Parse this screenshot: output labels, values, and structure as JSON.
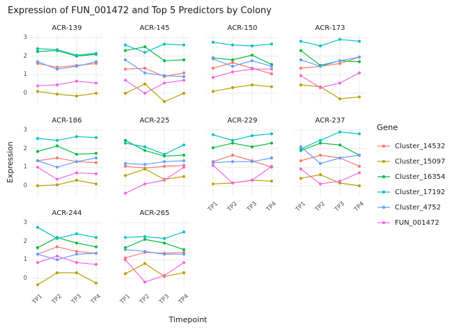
{
  "chart_data": {
    "type": "line",
    "title": "Expression of FUN_001472 and Top 5 Predictors by Colony",
    "xlabel": "Timepoint",
    "ylabel": "Expression",
    "x": [
      "TP1",
      "TP2",
      "TP3",
      "TP4"
    ],
    "yticks": [
      0,
      1,
      2,
      3
    ],
    "ylim": [
      -0.6,
      3.15
    ],
    "grid": true,
    "legend_title": "Gene",
    "legend_position": "right",
    "series_names": [
      "Cluster_14532",
      "Cluster_15097",
      "Cluster_16354",
      "Cluster_17192",
      "Cluster_4752",
      "FUN_001472"
    ],
    "series_colors": [
      "#F8766D",
      "#B79F00",
      "#00BA38",
      "#00BFC4",
      "#619CFF",
      "#F564E2"
    ],
    "grid_color": "#EBEBEB",
    "facets": [
      {
        "name": "ACR-139",
        "values": [
          [
            1.6,
            1.4,
            1.5,
            1.6
          ],
          [
            0.1,
            -0.05,
            -0.15,
            0
          ],
          [
            2.25,
            2.3,
            2,
            2.1
          ],
          [
            2.4,
            2.35,
            2.05,
            2.15
          ],
          [
            1.7,
            1.3,
            1.45,
            1.7
          ],
          [
            0.4,
            0.45,
            0.65,
            0.55
          ]
        ]
      },
      {
        "name": "ACR-145",
        "values": [
          [
            1.3,
            1.35,
            0.9,
            1.1
          ],
          [
            0,
            0.5,
            -0.45,
            0
          ],
          [
            2.3,
            2.5,
            1.75,
            1.8
          ],
          [
            2.6,
            2.2,
            2.65,
            2.6
          ],
          [
            1.8,
            1.1,
            0.95,
            0.9
          ],
          [
            0.7,
            0,
            0.55,
            0.7
          ]
        ]
      },
      {
        "name": "ACR-150",
        "values": [
          [
            1.35,
            1.65,
            1.35,
            1.05
          ],
          [
            0.1,
            0.3,
            0.45,
            0.35
          ],
          [
            1.9,
            1.8,
            2.05,
            1.55
          ],
          [
            2.75,
            2.6,
            2.55,
            2.65
          ],
          [
            1.85,
            1.45,
            1.75,
            1.45
          ],
          [
            0.85,
            1.15,
            1.3,
            1.3
          ]
        ]
      },
      {
        "name": "ACR-173",
        "values": [
          [
            1.35,
            1.45,
            1.6,
            1.95
          ],
          [
            0.45,
            0.35,
            -0.3,
            -0.2
          ],
          [
            2.3,
            1.5,
            1.75,
            1.7
          ],
          [
            2.8,
            2.55,
            2.9,
            2.8
          ],
          [
            1.8,
            1.45,
            1.75,
            1.95
          ],
          [
            0.95,
            0.3,
            0.55,
            1.1
          ]
        ]
      },
      {
        "name": "ACR-186",
        "values": [
          [
            1.35,
            1.5,
            1.3,
            1.25
          ],
          [
            0,
            0.05,
            0.3,
            0.1
          ],
          [
            1.85,
            2.15,
            1.7,
            1.75
          ],
          [
            2.55,
            2.45,
            2.65,
            2.6
          ],
          [
            1.35,
            1,
            1.3,
            1.5
          ],
          [
            1,
            0.35,
            0.7,
            0.65
          ]
        ]
      },
      {
        "name": "ACR-225",
        "values": [
          [
            1.05,
            0.95,
            1.05,
            1.1
          ],
          [
            0.55,
            0.9,
            0.35,
            0.5
          ],
          [
            2.45,
            1.9,
            1.6,
            1.65
          ],
          [
            2.3,
            2.1,
            1.7,
            2.2
          ],
          [
            1.2,
            1.15,
            1.3,
            1.35
          ],
          [
            -0.4,
            0.1,
            0.3,
            1
          ]
        ]
      },
      {
        "name": "ACR-229",
        "values": [
          [
            1.3,
            1.65,
            1.35,
            1
          ],
          [
            0.1,
            0.15,
            0.3,
            0.25
          ],
          [
            2.05,
            2.3,
            2.1,
            2.3
          ],
          [
            2.75,
            2.45,
            2.7,
            2.8
          ],
          [
            1.25,
            1.3,
            1.3,
            1.5
          ],
          [
            1.1,
            0.15,
            0.3,
            1.05
          ]
        ]
      },
      {
        "name": "ACR-237",
        "values": [
          [
            1.35,
            1.65,
            1.5,
            1.05
          ],
          [
            0.4,
            0.6,
            0.15,
            0
          ],
          [
            1.9,
            2.3,
            2.2,
            1.65
          ],
          [
            2,
            2.45,
            2.9,
            2.8
          ],
          [
            2.1,
            1.2,
            1.5,
            1.65
          ],
          [
            0.9,
            0.1,
            0.25,
            0.7
          ]
        ]
      },
      {
        "name": "ACR-244",
        "values": [
          [
            1.3,
            1.7,
            1.45,
            1.35
          ],
          [
            -0.35,
            0.3,
            0.3,
            -0.25
          ],
          [
            1.65,
            2.2,
            1.9,
            1.7
          ],
          [
            2.75,
            2.15,
            2.4,
            2.2
          ],
          [
            1.3,
            1,
            1.3,
            1.35
          ],
          [
            0.85,
            1.2,
            0.85,
            0.75
          ]
        ]
      },
      {
        "name": "ACR-265",
        "values": [
          [
            1.1,
            1.4,
            1.35,
            1.4
          ],
          [
            0.25,
            0.8,
            0.1,
            0.3
          ],
          [
            1.65,
            2.1,
            1.9,
            1.55
          ],
          [
            2.2,
            2.25,
            2.15,
            2.5
          ],
          [
            1.55,
            1.45,
            1.3,
            1.3
          ],
          [
            1,
            -0.2,
            0.15,
            0.85
          ]
        ]
      }
    ]
  }
}
